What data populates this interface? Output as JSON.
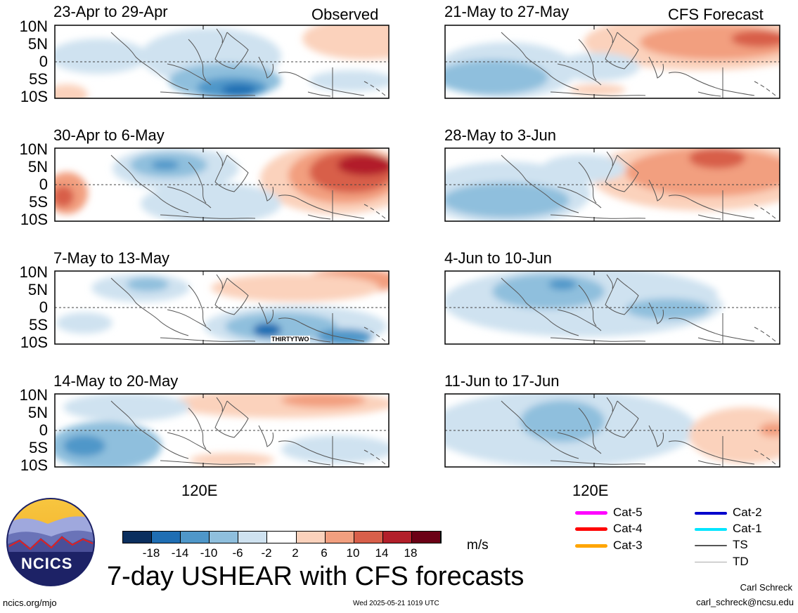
{
  "title": "7-day USHEAR with CFS forecasts",
  "logo_text": "NCICS",
  "footer": {
    "url": "ncics.org/mjo",
    "timestamp": "Wed 2025-05-21 1019 UTC",
    "author": "Carl Schreck",
    "email": "carl_schreck@ncsu.edu"
  },
  "observed_label": "Observed",
  "forecast_label": "CFS Forecast",
  "lat_labels": [
    "10N",
    "5N",
    "0",
    "5S",
    "10S"
  ],
  "lon_label": "120E",
  "storm_label": "THIRTYTWO",
  "panels_left": [
    {
      "title": "23-Apr to 29-Apr"
    },
    {
      "title": "30-Apr to 6-May"
    },
    {
      "title": "7-May to 13-May"
    },
    {
      "title": "14-May to 20-May"
    }
  ],
  "panels_right": [
    {
      "title": "21-May to 27-May"
    },
    {
      "title": "28-May to 3-Jun"
    },
    {
      "title": "4-Jun to 10-Jun"
    },
    {
      "title": "11-Jun to 17-Jun"
    }
  ],
  "colorbar": {
    "unit": "m/s",
    "labels": [
      "-18",
      "-14",
      "-10",
      "-6",
      "-2",
      "2",
      "6",
      "10",
      "14",
      "18"
    ],
    "colors": [
      "#0b2f5e",
      "#1f6eb3",
      "#4f97c9",
      "#8fbfdd",
      "#cfe2f0",
      "#ffffff",
      "#fbd2bc",
      "#f29f7f",
      "#d85f4a",
      "#b21f2a",
      "#6b0015"
    ]
  },
  "track_legend": [
    {
      "label": "Cat-5",
      "color": "#ff00ff"
    },
    {
      "label": "Cat-4",
      "color": "#ff0000"
    },
    {
      "label": "Cat-3",
      "color": "#ffa500"
    },
    {
      "label": "Cat-2",
      "color": "#0000cc"
    },
    {
      "label": "Cat-1",
      "color": "#00e5ff"
    },
    {
      "label": "TS",
      "color": "#555555"
    },
    {
      "label": "TD",
      "color": "#aaaaaa"
    }
  ]
}
